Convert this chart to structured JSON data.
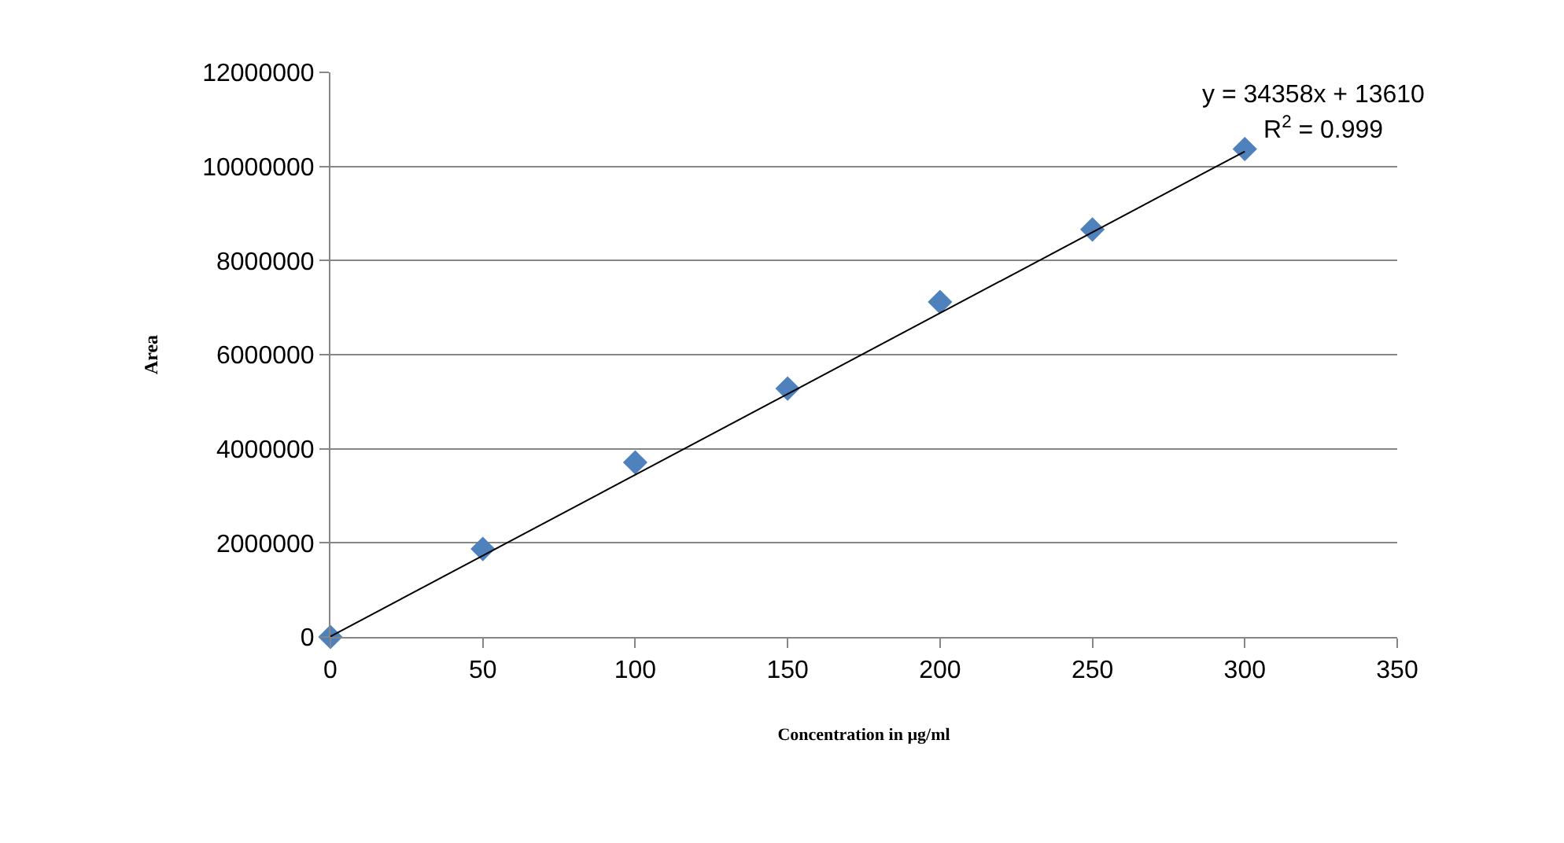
{
  "chart_data": {
    "type": "scatter",
    "xlabel": "Concentration in µg/ml",
    "ylabel": "Area",
    "annotations": [
      "y = 34358x + 13610",
      "R$^{2}$ = 0.999"
    ],
    "series": [
      {
        "color": "#4f81bd",
        "marker": "diamond",
        "x": [
          0,
          50,
          100,
          150,
          200,
          250,
          300
        ],
        "values": [
          0,
          1870000,
          3710000,
          5280000,
          7120000,
          8660000,
          10370000
        ]
      },
      {
        "type": "line",
        "color": "#000000",
        "marker": "none",
        "x": [
          0,
          300
        ],
        "values": [
          10000,
          10320000
        ]
      }
    ],
    "xlim": [
      0,
      350
    ],
    "xticks": [
      0,
      50,
      100,
      150,
      200,
      250,
      300,
      350
    ],
    "ylim": [
      0,
      12000000
    ],
    "yticks": [
      0,
      2000000,
      4000000,
      6000000,
      8000000,
      10000000,
      12000000
    ],
    "grid": "y"
  }
}
